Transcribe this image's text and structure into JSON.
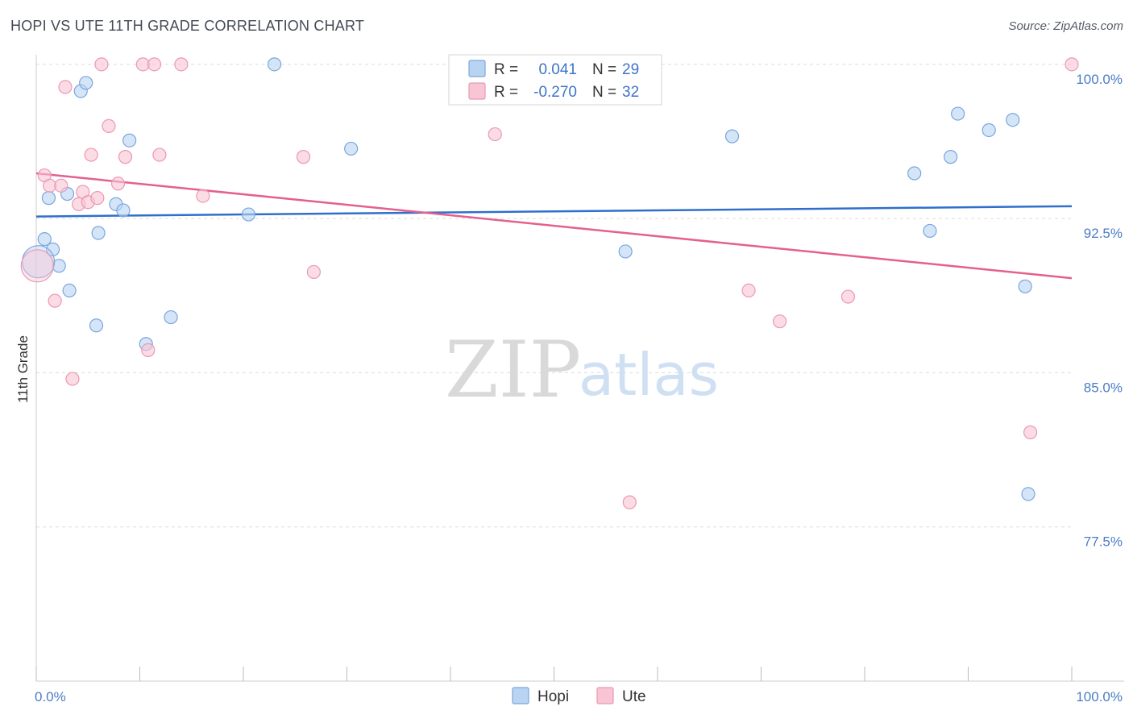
{
  "header": {
    "title": "HOPI VS UTE 11TH GRADE CORRELATION CHART",
    "source": "Source: ZipAtlas.com"
  },
  "watermark": {
    "zip": "ZIP",
    "atlas": "atlas"
  },
  "colors": {
    "hopi_fill": "#b9d3f3",
    "hopi_stroke": "#7aa6de",
    "hopi_line": "#2f6fcb",
    "ute_fill": "#f8c5d4",
    "ute_stroke": "#ec98b3",
    "ute_line": "#e4608e",
    "grid": "#dcdcdc",
    "tick_label": "#4a7cc6"
  },
  "legend": {
    "rows": [
      {
        "r_label": "R =",
        "r_value": "0.041",
        "n_label": "N =",
        "n_value": "29"
      },
      {
        "r_label": "R =",
        "r_value": "-0.270",
        "n_label": "N =",
        "n_value": "32"
      }
    ]
  },
  "bottom_legend": [
    "Hopi",
    "Ute"
  ],
  "chart_data": {
    "type": "scatter",
    "title": "HOPI VS UTE 11TH GRADE CORRELATION CHART",
    "xlabel": "",
    "ylabel": "11th Grade",
    "xlim": [
      0,
      100
    ],
    "ylim": [
      70.0,
      100.7
    ],
    "x_tick_labels": [
      "0.0%",
      "100.0%"
    ],
    "y_ticks": [
      77.5,
      85.0,
      92.5,
      100.0
    ],
    "y_tick_labels": [
      "77.5%",
      "85.0%",
      "92.5%",
      "100.0%"
    ],
    "grid": true,
    "legend_position": "top-center",
    "series": [
      {
        "name": "Hopi",
        "r": 0.041,
        "n": 29,
        "trend": {
          "x": [
            0,
            100
          ],
          "y": [
            92.6,
            93.1
          ]
        },
        "points": [
          {
            "x": 0.8,
            "y": 91.5
          },
          {
            "x": 1.2,
            "y": 93.5
          },
          {
            "x": 1.6,
            "y": 91.0
          },
          {
            "x": 2.2,
            "y": 90.2
          },
          {
            "x": 3.0,
            "y": 93.7
          },
          {
            "x": 3.2,
            "y": 89.0
          },
          {
            "x": 4.3,
            "y": 98.7
          },
          {
            "x": 4.8,
            "y": 99.1
          },
          {
            "x": 5.8,
            "y": 87.3
          },
          {
            "x": 6.0,
            "y": 91.8
          },
          {
            "x": 7.7,
            "y": 93.2
          },
          {
            "x": 8.4,
            "y": 92.9
          },
          {
            "x": 9.0,
            "y": 96.3
          },
          {
            "x": 10.6,
            "y": 86.4
          },
          {
            "x": 13.0,
            "y": 87.7
          },
          {
            "x": 20.5,
            "y": 92.7
          },
          {
            "x": 23.0,
            "y": 100.0
          },
          {
            "x": 30.4,
            "y": 95.9
          },
          {
            "x": 56.9,
            "y": 90.9
          },
          {
            "x": 67.2,
            "y": 96.5
          },
          {
            "x": 84.8,
            "y": 94.7
          },
          {
            "x": 86.3,
            "y": 91.9
          },
          {
            "x": 88.3,
            "y": 95.5
          },
          {
            "x": 89.0,
            "y": 97.6
          },
          {
            "x": 92.0,
            "y": 96.8
          },
          {
            "x": 94.3,
            "y": 97.3
          },
          {
            "x": 95.5,
            "y": 89.2
          },
          {
            "x": 95.8,
            "y": 79.1
          },
          {
            "x": 0.2,
            "y": 90.4
          }
        ]
      },
      {
        "name": "Ute",
        "r": -0.27,
        "n": 32,
        "trend": {
          "x": [
            0,
            100
          ],
          "y": [
            94.7,
            89.6
          ]
        },
        "points": [
          {
            "x": 0.8,
            "y": 94.6
          },
          {
            "x": 1.3,
            "y": 94.1
          },
          {
            "x": 1.8,
            "y": 88.5
          },
          {
            "x": 2.4,
            "y": 94.1
          },
          {
            "x": 2.8,
            "y": 98.9
          },
          {
            "x": 3.5,
            "y": 84.7
          },
          {
            "x": 4.1,
            "y": 93.2
          },
          {
            "x": 4.5,
            "y": 93.8
          },
          {
            "x": 5.0,
            "y": 93.3
          },
          {
            "x": 5.3,
            "y": 95.6
          },
          {
            "x": 5.9,
            "y": 93.5
          },
          {
            "x": 6.3,
            "y": 100.0
          },
          {
            "x": 7.0,
            "y": 97.0
          },
          {
            "x": 7.9,
            "y": 94.2
          },
          {
            "x": 8.6,
            "y": 95.5
          },
          {
            "x": 10.3,
            "y": 100.0
          },
          {
            "x": 10.8,
            "y": 86.1
          },
          {
            "x": 11.4,
            "y": 100.0
          },
          {
            "x": 11.9,
            "y": 95.6
          },
          {
            "x": 14.0,
            "y": 100.0
          },
          {
            "x": 16.1,
            "y": 93.6
          },
          {
            "x": 25.8,
            "y": 95.5
          },
          {
            "x": 26.8,
            "y": 89.9
          },
          {
            "x": 44.3,
            "y": 96.6
          },
          {
            "x": 52.4,
            "y": 100.0
          },
          {
            "x": 57.3,
            "y": 78.7
          },
          {
            "x": 68.8,
            "y": 89.0
          },
          {
            "x": 71.8,
            "y": 87.5
          },
          {
            "x": 78.4,
            "y": 88.7
          },
          {
            "x": 96.0,
            "y": 82.1
          },
          {
            "x": 100.0,
            "y": 100.0
          },
          {
            "x": 0.1,
            "y": 90.2
          }
        ]
      }
    ]
  }
}
